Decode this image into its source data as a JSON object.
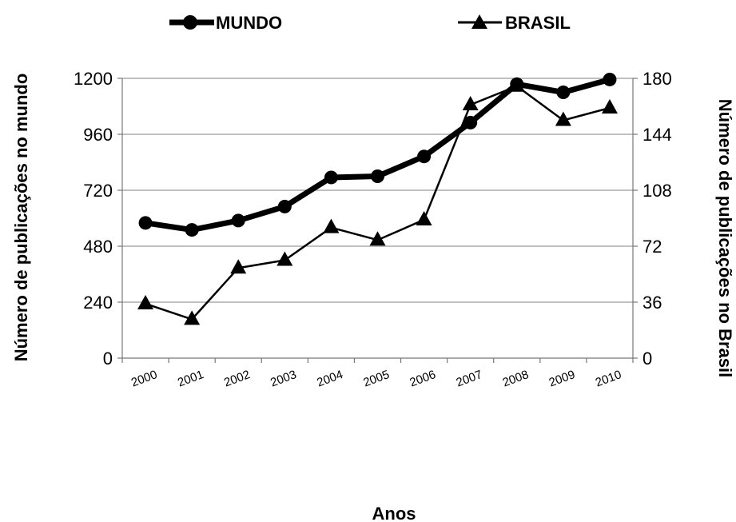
{
  "chart_data": {
    "type": "line",
    "title": "",
    "xlabel": "Anos",
    "ylabel_left": "Número de publicações no mundo",
    "ylabel_right": "Número de publicações no Brasil",
    "categories": [
      "2000",
      "2001",
      "2002",
      "2003",
      "2004",
      "2005",
      "2006",
      "2007",
      "2008",
      "2009",
      "2010"
    ],
    "ylim_left": [
      0,
      1200
    ],
    "ylim_right": [
      0,
      180
    ],
    "yticks_left": [
      "0",
      "240",
      "480",
      "720",
      "960",
      "1200"
    ],
    "yticks_right": [
      "0",
      "36",
      "72",
      "108",
      "144",
      "180"
    ],
    "grid": true,
    "legend_position": "top",
    "series": [
      {
        "name": "MUNDO",
        "axis": "left",
        "marker": "circle",
        "color": "#000000",
        "values": [
          580,
          550,
          590,
          650,
          775,
          780,
          865,
          1010,
          1175,
          1140,
          1195
        ]
      },
      {
        "name": "BRASIL",
        "axis": "right",
        "marker": "triangle",
        "color": "#000000",
        "values": [
          35,
          25,
          58,
          63,
          84,
          76,
          89,
          163,
          175,
          153,
          161
        ]
      }
    ]
  }
}
